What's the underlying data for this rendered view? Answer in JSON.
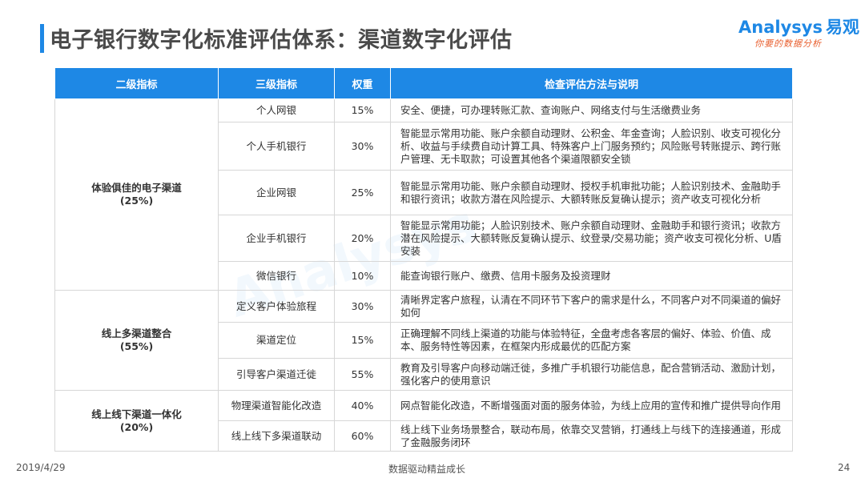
{
  "header": {
    "title": "电子银行数字化标准评估体系：渠道数字化评估",
    "logo_en": "Analysys",
    "logo_cn": "易观",
    "logo_slogan": "你要的数据分析"
  },
  "table": {
    "headers": [
      "二级指标",
      "三级指标",
      "权重",
      "检查评估方法与说明"
    ],
    "groups": [
      {
        "name": "体验俱佳的电子渠道",
        "weight": "(25%)",
        "rows": [
          {
            "indicator": "个人网银",
            "weight": "15%",
            "desc": "安全、便捷，可办理转账汇款、查询账户、网络支付与生活缴费业务"
          },
          {
            "indicator": "个人手机银行",
            "weight": "30%",
            "desc": "智能显示常用功能、账户余额自动理财、公积金、年金查询；人脸识别、收支可视化分析、收益与手续费自动计算工具、特殊客户上门服务预约；风险账号转账提示、跨行账户管理、无卡取款；可设置其他各个渠道限额安全锁"
          },
          {
            "indicator": "企业网银",
            "weight": "25%",
            "desc": "智能显示常用功能、账户余额自动理财、授权手机审批功能；人脸识别技术、金融助手和银行资讯；收款方潜在风险提示、大额转账反复确认提示；资产收支可视化分析"
          },
          {
            "indicator": "企业手机银行",
            "weight": "20%",
            "desc": "智能显示常用功能；人脸识别技术、账户余额自动理财、金融助手和银行资讯；收款方潜在风险提示、大额转账反复确认提示、纹登录/交易功能；资产收支可视化分析、U盾安装"
          },
          {
            "indicator": "微信银行",
            "weight": "10%",
            "desc": "能查询银行账户、缴费、信用卡服务及投资理财"
          }
        ]
      },
      {
        "name": "线上多渠道整合",
        "weight": "(55%)",
        "rows": [
          {
            "indicator": "定义客户体验旅程",
            "weight": "30%",
            "desc": "清晰界定客户旅程，认清在不同环节下客户的需求是什么，不同客户对不同渠道的偏好如何"
          },
          {
            "indicator": "渠道定位",
            "weight": "15%",
            "desc": "正确理解不同线上渠道的功能与体验特征，全盘考虑各客层的偏好、体验、价值、成本、服务特性等因素，在框架内形成最优的匹配方案"
          },
          {
            "indicator": "引导客户渠道迁徙",
            "weight": "55%",
            "desc": "教育及引导客户向移动端迁徙，多推广手机银行功能信息，配合营销活动、激励计划，强化客户的使用意识"
          }
        ]
      },
      {
        "name": "线上线下渠道一体化",
        "weight": "(20%)",
        "rows": [
          {
            "indicator": "物理渠道智能化改造",
            "weight": "40%",
            "desc": "网点智能化改造，不断增强面对面的服务体验，为线上应用的宣传和推广提供导向作用"
          },
          {
            "indicator": "线上线下多渠道联动",
            "weight": "60%",
            "desc": "线上线下业务场景整合，联动布局，依靠交叉营销，打通线上与线下的连接通道，形成了金融服务闭环"
          }
        ]
      }
    ]
  },
  "footer": {
    "date": "2019/4/29",
    "center": "数据驱动精益成长",
    "page": "24"
  },
  "colors": {
    "accent": "#1e88e5",
    "header_text": "#ffffff",
    "border": "#d7d7d7",
    "slogan": "#e85d2c"
  }
}
